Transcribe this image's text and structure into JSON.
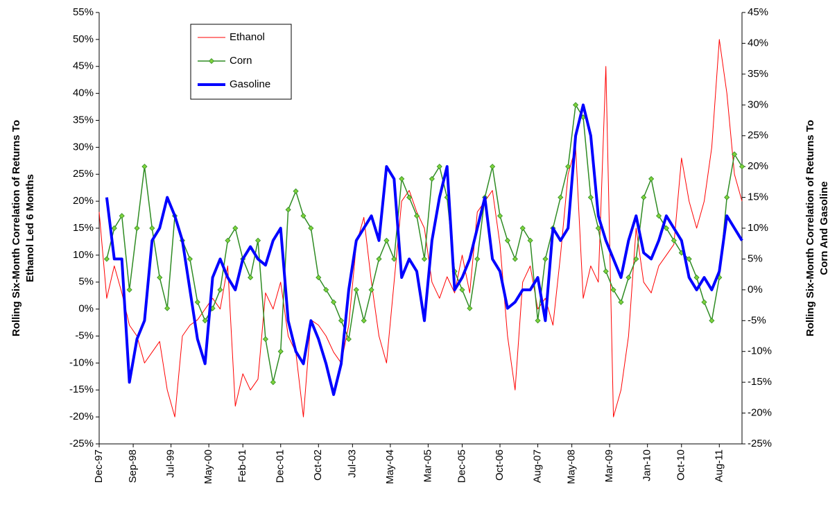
{
  "chart_data": {
    "type": "line",
    "ylabel": [
      "Rolling Six-Month Correlation of Returns To",
      "Ethanol Led 6 Months"
    ],
    "y2label": [
      "Rolling Six-Month Correlation of Returns To",
      "Corn And Gasoline"
    ],
    "legend": "upper left",
    "grid": false,
    "xlim": [
      "1997-12",
      "2012-02"
    ],
    "xticks": [
      {
        "value": "1997-12",
        "label": "Dec-97"
      },
      {
        "value": "1998-09",
        "label": "Sep-98"
      },
      {
        "value": "1999-07",
        "label": "Jul-99"
      },
      {
        "value": "2000-05",
        "label": "May-00"
      },
      {
        "value": "2001-02",
        "label": "Feb-01"
      },
      {
        "value": "2001-12",
        "label": "Dec-01"
      },
      {
        "value": "2002-10",
        "label": "Oct-02"
      },
      {
        "value": "2003-07",
        "label": "Jul-03"
      },
      {
        "value": "2004-05",
        "label": "May-04"
      },
      {
        "value": "2005-03",
        "label": "Mar-05"
      },
      {
        "value": "2005-12",
        "label": "Dec-05"
      },
      {
        "value": "2006-10",
        "label": "Oct-06"
      },
      {
        "value": "2007-08",
        "label": "Aug-07"
      },
      {
        "value": "2008-05",
        "label": "May-08"
      },
      {
        "value": "2009-03",
        "label": "Mar-09"
      },
      {
        "value": "2010-01",
        "label": "Jan-10"
      },
      {
        "value": "2010-10",
        "label": "Oct-10"
      },
      {
        "value": "2011-08",
        "label": "Aug-11"
      }
    ],
    "ylim": [
      -25,
      55
    ],
    "yticks": [
      {
        "value": -25,
        "label": "-25%"
      },
      {
        "value": -20,
        "label": "-20%"
      },
      {
        "value": -15,
        "label": "-15%"
      },
      {
        "value": -10,
        "label": "-10%"
      },
      {
        "value": -5,
        "label": "-5%"
      },
      {
        "value": 0,
        "label": "0%"
      },
      {
        "value": 5,
        "label": "5%"
      },
      {
        "value": 10,
        "label": "10%"
      },
      {
        "value": 15,
        "label": "15%"
      },
      {
        "value": 20,
        "label": "20%"
      },
      {
        "value": 25,
        "label": "25%"
      },
      {
        "value": 30,
        "label": "30%"
      },
      {
        "value": 35,
        "label": "35%"
      },
      {
        "value": 40,
        "label": "40%"
      },
      {
        "value": 45,
        "label": "45%"
      },
      {
        "value": 50,
        "label": "50%"
      },
      {
        "value": 55,
        "label": "55%"
      }
    ],
    "y2lim": [
      -25,
      45
    ],
    "y2ticks": [
      {
        "value": -25,
        "label": "-25%"
      },
      {
        "value": -20,
        "label": "-20%"
      },
      {
        "value": -15,
        "label": "-15%"
      },
      {
        "value": -10,
        "label": "-10%"
      },
      {
        "value": -5,
        "label": "-5%"
      },
      {
        "value": 0,
        "label": "0%"
      },
      {
        "value": 5,
        "label": "5%"
      },
      {
        "value": 10,
        "label": "10%"
      },
      {
        "value": 15,
        "label": "15%"
      },
      {
        "value": 20,
        "label": "20%"
      },
      {
        "value": 25,
        "label": "25%"
      },
      {
        "value": 30,
        "label": "30%"
      },
      {
        "value": 35,
        "label": "35%"
      },
      {
        "value": 40,
        "label": "40%"
      },
      {
        "value": 45,
        "label": "45%"
      }
    ],
    "x": [
      "1997-12",
      "1998-02",
      "1998-04",
      "1998-06",
      "1998-08",
      "1998-10",
      "1998-12",
      "1999-02",
      "1999-04",
      "1999-06",
      "1999-08",
      "1999-10",
      "1999-12",
      "2000-02",
      "2000-04",
      "2000-06",
      "2000-08",
      "2000-10",
      "2000-12",
      "2001-02",
      "2001-04",
      "2001-06",
      "2001-08",
      "2001-10",
      "2001-12",
      "2002-02",
      "2002-04",
      "2002-06",
      "2002-08",
      "2002-10",
      "2002-12",
      "2003-02",
      "2003-04",
      "2003-06",
      "2003-08",
      "2003-10",
      "2003-12",
      "2004-02",
      "2004-04",
      "2004-06",
      "2004-08",
      "2004-10",
      "2004-12",
      "2005-02",
      "2005-04",
      "2005-06",
      "2005-08",
      "2005-10",
      "2005-12",
      "2006-02",
      "2006-04",
      "2006-06",
      "2006-08",
      "2006-10",
      "2006-12",
      "2007-02",
      "2007-04",
      "2007-06",
      "2007-08",
      "2007-10",
      "2007-12",
      "2008-02",
      "2008-04",
      "2008-06",
      "2008-08",
      "2008-10",
      "2008-12",
      "2009-02",
      "2009-04",
      "2009-06",
      "2009-08",
      "2009-10",
      "2009-12",
      "2010-02",
      "2010-04",
      "2010-06",
      "2010-08",
      "2010-10",
      "2010-12",
      "2011-02",
      "2011-04",
      "2011-06",
      "2011-08",
      "2011-10",
      "2011-12",
      "2012-02"
    ],
    "series": [
      {
        "name": "Ethanol",
        "color": "#ff0000",
        "width": 1,
        "values": [
          18,
          2,
          8,
          3,
          -3,
          -5,
          -10,
          -8,
          -6,
          -15,
          -20,
          -5,
          -3,
          -2,
          0,
          2,
          0,
          8,
          -18,
          -12,
          -15,
          -13,
          3,
          0,
          5,
          -5,
          -8,
          -20,
          -2,
          -3,
          -5,
          -8,
          -10,
          -3,
          12,
          17,
          5,
          -5,
          -10,
          5,
          20,
          22,
          18,
          15,
          5,
          2,
          6,
          3,
          10,
          3,
          18,
          20,
          22,
          12,
          -5,
          -15,
          5,
          8,
          0,
          2,
          -3,
          10,
          25,
          30,
          2,
          8,
          5,
          45,
          -20,
          -15,
          -5,
          15,
          5,
          3,
          8,
          10,
          12,
          28,
          20,
          15,
          20,
          30,
          50,
          40,
          25,
          20
        ]
      },
      {
        "name": "Corn",
        "color": "#2e8b22",
        "marker_color": "#7fd23c",
        "marker": "diamond",
        "width": 1.5,
        "axis": "y2",
        "values": [
          null,
          5,
          10,
          12,
          0,
          10,
          20,
          10,
          2,
          -3,
          12,
          8,
          5,
          -2,
          -5,
          -3,
          0,
          8,
          10,
          5,
          2,
          8,
          -8,
          -15,
          -10,
          13,
          16,
          12,
          10,
          2,
          0,
          -2,
          -5,
          -8,
          0,
          -5,
          0,
          5,
          8,
          5,
          18,
          15,
          12,
          5,
          18,
          20,
          15,
          3,
          0,
          -3,
          5,
          15,
          20,
          12,
          8,
          5,
          10,
          8,
          -5,
          5,
          10,
          15,
          20,
          30,
          28,
          15,
          10,
          3,
          0,
          -2,
          2,
          5,
          15,
          18,
          12,
          10,
          8,
          6,
          5,
          2,
          -2,
          -5,
          2,
          15,
          22,
          20
        ]
      },
      {
        "name": "Gasoline",
        "color": "#0000ff",
        "width": 4,
        "axis": "y2",
        "values": [
          null,
          15,
          5,
          5,
          -15,
          -8,
          -5,
          8,
          10,
          15,
          12,
          8,
          0,
          -8,
          -12,
          2,
          5,
          2,
          0,
          5,
          7,
          5,
          4,
          8,
          10,
          -5,
          -10,
          -12,
          -5,
          -8,
          -12,
          -17,
          -12,
          0,
          8,
          10,
          12,
          8,
          20,
          18,
          2,
          5,
          3,
          -5,
          8,
          15,
          20,
          0,
          2,
          5,
          10,
          15,
          5,
          3,
          -3,
          -2,
          0,
          0,
          2,
          -5,
          10,
          8,
          10,
          25,
          30,
          25,
          12,
          8,
          5,
          2,
          8,
          12,
          6,
          5,
          8,
          12,
          10,
          8,
          2,
          0,
          2,
          0,
          3,
          12,
          10,
          8
        ]
      }
    ]
  }
}
